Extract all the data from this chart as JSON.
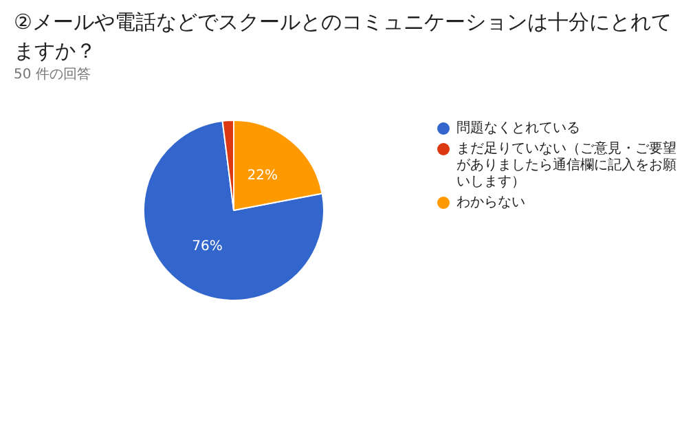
{
  "chart_data": {
    "type": "pie",
    "title": "②メールや電話などでスクールとのコミュニケーションは十分にとれてますか？",
    "subtitle": "50 件の回答",
    "categories": [
      "問題なくとれている",
      "まだ足りていない（ご意見・ご要望がありましたら通信欄に記入をお願いします）",
      "わからない"
    ],
    "values": [
      76,
      2,
      22
    ],
    "colors": [
      "#3366cc",
      "#dc3912",
      "#ff9900"
    ],
    "value_labels": [
      "76%",
      null,
      "22%"
    ],
    "legend": "right"
  }
}
